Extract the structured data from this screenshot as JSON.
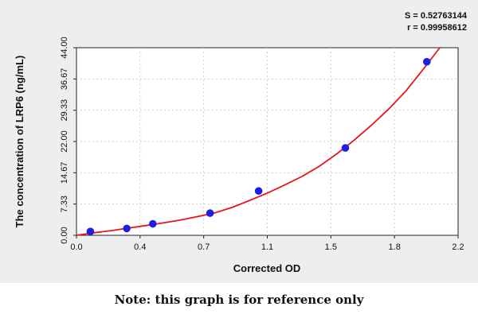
{
  "chart_data": {
    "type": "scatter",
    "title": "",
    "xlabel": "Corrected OD",
    "ylabel": "The concentration of LRP6 (ng/mL)",
    "xlim": [
      0.0,
      2.2
    ],
    "ylim": [
      0.0,
      44.0
    ],
    "x_ticks": [
      "0.0",
      "0.4",
      "0.7",
      "1.1",
      "1.5",
      "1.8",
      "2.2"
    ],
    "y_ticks": [
      "0.00",
      "7.33",
      "14.67",
      "22.00",
      "29.33",
      "36.67",
      "44.00"
    ],
    "points": [
      {
        "x": 0.08,
        "y": 0.9
      },
      {
        "x": 0.29,
        "y": 1.6
      },
      {
        "x": 0.44,
        "y": 2.7
      },
      {
        "x": 0.77,
        "y": 5.2
      },
      {
        "x": 1.05,
        "y": 10.4
      },
      {
        "x": 1.55,
        "y": 20.5
      },
      {
        "x": 2.02,
        "y": 40.7
      }
    ],
    "fit_curve": {
      "x": [
        0.0,
        0.1,
        0.2,
        0.3,
        0.4,
        0.5,
        0.6,
        0.7,
        0.8,
        0.9,
        1.0,
        1.1,
        1.2,
        1.3,
        1.4,
        1.5,
        1.6,
        1.7,
        1.8,
        1.9,
        2.0,
        2.1
      ],
      "y": [
        0.0,
        0.6,
        1.1,
        1.7,
        2.3,
        2.9,
        3.6,
        4.4,
        5.3,
        6.6,
        8.2,
        9.9,
        11.8,
        13.8,
        16.2,
        19.1,
        22.3,
        25.8,
        29.6,
        33.9,
        39.0,
        44.3
      ]
    },
    "fit_color": "#e8161b",
    "point_color": "#1f1fe0",
    "stats": {
      "s_text": "S = 0.52763144",
      "r_text": "r = 0.99958612"
    },
    "grid": true
  },
  "note": "Note: this graph is for reference only"
}
